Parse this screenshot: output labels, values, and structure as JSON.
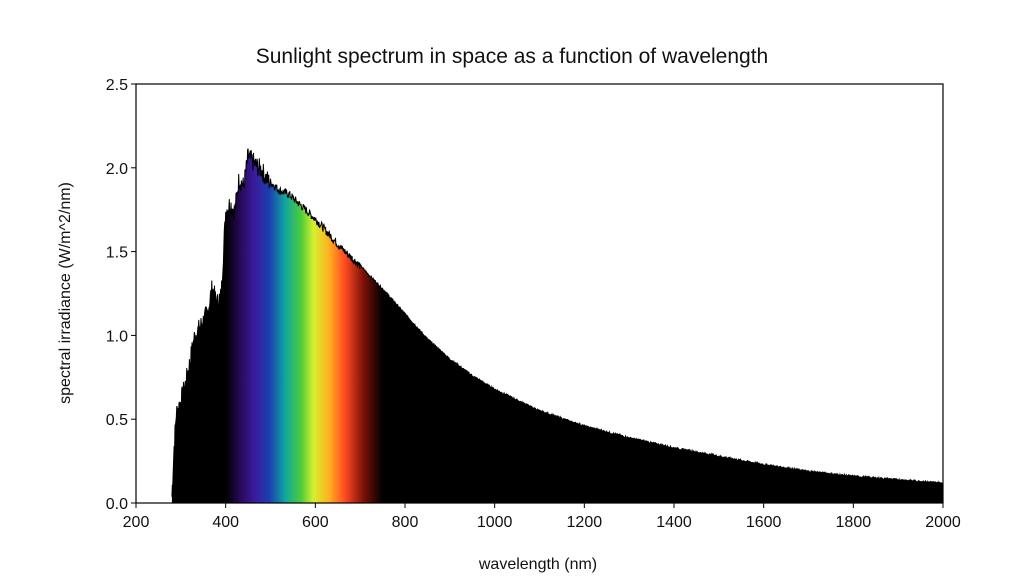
{
  "chart_data": {
    "type": "area",
    "title": "Sunlight spectrum in space as a function of wavelength",
    "xlabel": "wavelength (nm)",
    "ylabel": "spectral irradiance (W/m^2/nm)",
    "xlim": [
      200,
      2000
    ],
    "ylim": [
      0,
      2.5
    ],
    "x_ticks": [
      200,
      400,
      600,
      800,
      1000,
      1200,
      1400,
      1600,
      1800,
      2000
    ],
    "x_tick_labels": [
      "200",
      "400",
      "600",
      "800",
      "1000",
      "1200",
      "1400",
      "1600",
      "1800",
      "2000"
    ],
    "y_ticks": [
      0,
      0.5,
      1.0,
      1.5,
      2.0,
      2.5
    ],
    "y_tick_labels": [
      "0.0",
      "0.5",
      "1.0",
      "1.5",
      "2.0",
      "2.5"
    ],
    "grid": false,
    "legend": "none",
    "fill_color": "#000000",
    "visible_band": [
      400,
      750
    ],
    "series": [
      {
        "x": [
          280,
          285,
          290,
          300,
          310,
          320,
          330,
          340,
          350,
          360,
          370,
          380,
          390,
          400,
          410,
          420,
          430,
          440,
          450,
          460,
          470,
          480,
          490,
          500,
          520,
          540,
          560,
          580,
          600,
          620,
          640,
          660,
          680,
          700,
          720,
          750,
          800,
          850,
          900,
          950,
          1000,
          1100,
          1200,
          1300,
          1400,
          1500,
          1600,
          1700,
          1800,
          1900,
          2000
        ],
        "values": [
          0.05,
          0.35,
          0.55,
          0.62,
          0.72,
          0.85,
          1.0,
          1.05,
          1.1,
          1.15,
          1.3,
          1.2,
          1.25,
          1.75,
          1.8,
          1.75,
          1.95,
          1.9,
          2.08,
          2.05,
          2.02,
          2.0,
          1.95,
          1.92,
          1.87,
          1.85,
          1.8,
          1.75,
          1.7,
          1.64,
          1.58,
          1.52,
          1.47,
          1.42,
          1.36,
          1.28,
          1.13,
          0.98,
          0.86,
          0.76,
          0.68,
          0.55,
          0.46,
          0.39,
          0.33,
          0.28,
          0.23,
          0.19,
          0.16,
          0.14,
          0.12
        ]
      }
    ]
  }
}
